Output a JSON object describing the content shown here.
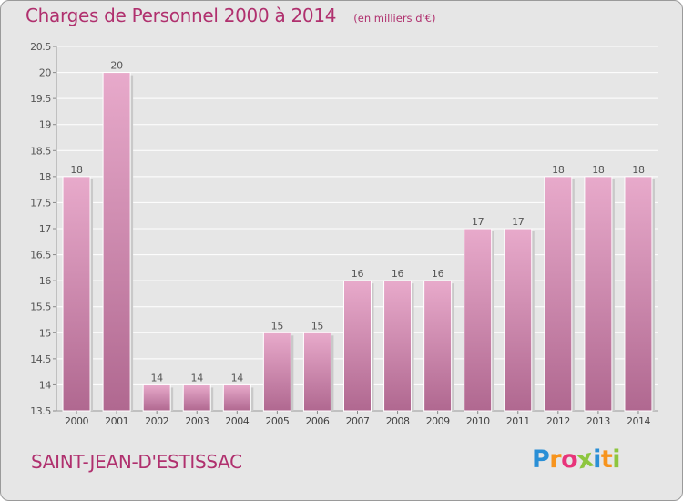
{
  "chart_data": {
    "type": "bar",
    "title": "Charges de Personnel 2000 à 2014",
    "subtitle": "(en milliers d'€)",
    "categories": [
      "2000",
      "2001",
      "2002",
      "2003",
      "2004",
      "2005",
      "2006",
      "2007",
      "2008",
      "2009",
      "2010",
      "2011",
      "2012",
      "2013",
      "2014"
    ],
    "values": [
      18,
      20,
      14,
      14,
      14,
      15,
      15,
      16,
      16,
      16,
      17,
      17,
      18,
      18,
      18
    ],
    "data_labels": [
      "18",
      "20",
      "14",
      "14",
      "14",
      "15",
      "15",
      "16",
      "16",
      "16",
      "17",
      "17",
      "18",
      "18",
      "18"
    ],
    "ylim": [
      13.5,
      20.5
    ],
    "yticks": [
      13.5,
      14,
      14.5,
      15,
      15.5,
      16,
      16.5,
      17,
      17.5,
      18,
      18.5,
      19,
      19.5,
      20,
      20.5
    ],
    "ytick_labels": [
      "13.5",
      "14",
      "14.5",
      "15",
      "15.5",
      "16",
      "16.5",
      "17",
      "17.5",
      "18",
      "18.5",
      "19",
      "19.5",
      "20",
      "20.5"
    ],
    "grid": true,
    "bar_color_top": "#e8aacb",
    "bar_color_bottom": "#b06890"
  },
  "footer": {
    "place_name": "SAINT-JEAN-D'ESTISSAC",
    "logo_text": "Proxiti"
  },
  "colors": {
    "title": "#b0306e",
    "background": "#e6e6e6",
    "logo_letters": [
      "#2a8fd6",
      "#f7941d",
      "#e8347a",
      "#8dc63f",
      "#2a8fd6",
      "#f7941d",
      "#8dc63f"
    ]
  }
}
